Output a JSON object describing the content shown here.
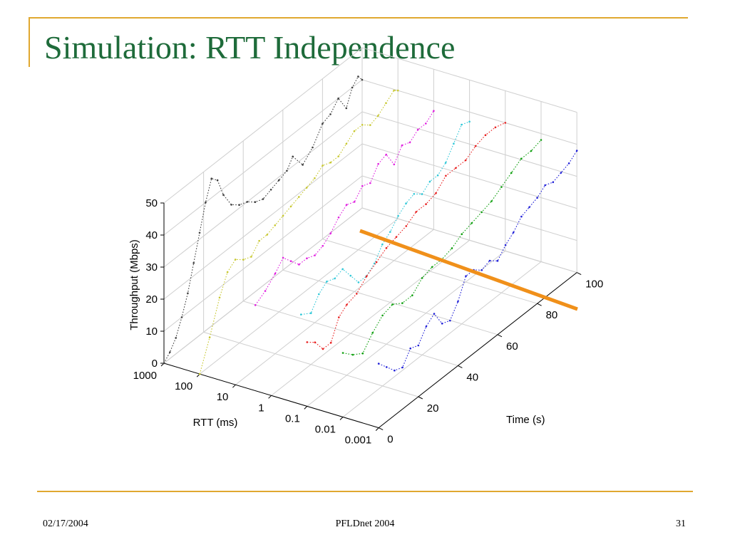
{
  "slide": {
    "title": "Simulation: RTT Independence",
    "footer_date": "02/17/2004",
    "footer_center": "PFLDnet 2004",
    "page_number": "31",
    "accent_color": "#e0a830",
    "title_color": "#1e6b3a"
  },
  "chart_data": {
    "type": "line",
    "projection": "3d",
    "title": "",
    "xlabel": "Time (s)",
    "ylabel": "RTT (ms)",
    "zlabel": "Throughput (Mbps)",
    "xlim": [
      0,
      100
    ],
    "zlim": [
      0,
      50
    ],
    "x_ticks": [
      "0",
      "20",
      "40",
      "60",
      "80",
      "100"
    ],
    "rtt_ticks": [
      "1000",
      "100",
      "10",
      "1",
      "0.1",
      "0.01",
      "0.001"
    ],
    "z_ticks": [
      "0",
      "10",
      "20",
      "30",
      "40",
      "50"
    ],
    "grid": true,
    "series": [
      {
        "rtt_index": 0,
        "color": "#404040",
        "points": [
          [
            0,
            0
          ],
          [
            3,
            2
          ],
          [
            6,
            5
          ],
          [
            9,
            10
          ],
          [
            12,
            16
          ],
          [
            15,
            24
          ],
          [
            18,
            32
          ],
          [
            21,
            40
          ],
          [
            24,
            46
          ],
          [
            27,
            44
          ],
          [
            30,
            38
          ],
          [
            34,
            33
          ],
          [
            38,
            31
          ],
          [
            42,
            30
          ],
          [
            46,
            28
          ],
          [
            50,
            27
          ],
          [
            54,
            28
          ],
          [
            58,
            29
          ],
          [
            62,
            30
          ],
          [
            65,
            33
          ],
          [
            70,
            28
          ],
          [
            75,
            31
          ],
          [
            80,
            36
          ],
          [
            84,
            37
          ],
          [
            88,
            40
          ],
          [
            92,
            35
          ],
          [
            95,
            40
          ],
          [
            98,
            42
          ],
          [
            100,
            40
          ]
        ]
      },
      {
        "rtt_index": 1,
        "color": "#c8c830",
        "points": [
          [
            0,
            0
          ],
          [
            5,
            9
          ],
          [
            10,
            19
          ],
          [
            14,
            25
          ],
          [
            18,
            27
          ],
          [
            22,
            25
          ],
          [
            26,
            24
          ],
          [
            30,
            27
          ],
          [
            34,
            27
          ],
          [
            38,
            28
          ],
          [
            42,
            29
          ],
          [
            46,
            30
          ],
          [
            50,
            31
          ],
          [
            54,
            32
          ],
          [
            58,
            33
          ],
          [
            62,
            35
          ],
          [
            66,
            34
          ],
          [
            70,
            34
          ],
          [
            74,
            36
          ],
          [
            78,
            38
          ],
          [
            82,
            38
          ],
          [
            86,
            36
          ],
          [
            90,
            37
          ],
          [
            94,
            39
          ],
          [
            98,
            41
          ],
          [
            100,
            40
          ]
        ]
      },
      {
        "rtt_index": 2,
        "color": "#e020e0",
        "points": [
          [
            10,
            20
          ],
          [
            15,
            22
          ],
          [
            20,
            25
          ],
          [
            24,
            28
          ],
          [
            28,
            25
          ],
          [
            32,
            22
          ],
          [
            36,
            22
          ],
          [
            40,
            21
          ],
          [
            44,
            22
          ],
          [
            48,
            24
          ],
          [
            52,
            27
          ],
          [
            56,
            29
          ],
          [
            60,
            28
          ],
          [
            64,
            31
          ],
          [
            68,
            30
          ],
          [
            72,
            34
          ],
          [
            76,
            35
          ],
          [
            80,
            30
          ],
          [
            84,
            34
          ],
          [
            88,
            33
          ],
          [
            92,
            35
          ],
          [
            96,
            35
          ],
          [
            100,
            37
          ]
        ]
      },
      {
        "rtt_index": 3,
        "color": "#30c8d8",
        "points": [
          [
            15,
            18
          ],
          [
            20,
            16
          ],
          [
            24,
            20
          ],
          [
            28,
            22
          ],
          [
            32,
            21
          ],
          [
            36,
            22
          ],
          [
            40,
            18
          ],
          [
            44,
            14
          ],
          [
            48,
            14
          ],
          [
            52,
            16
          ],
          [
            56,
            20
          ],
          [
            60,
            22
          ],
          [
            64,
            25
          ],
          [
            68,
            27
          ],
          [
            72,
            28
          ],
          [
            76,
            26
          ],
          [
            80,
            28
          ],
          [
            84,
            28
          ],
          [
            88,
            30
          ],
          [
            92,
            34
          ],
          [
            96,
            38
          ],
          [
            100,
            37
          ]
        ]
      },
      {
        "rtt_index": 4,
        "color": "#e82020",
        "points": [
          [
            0,
            20
          ],
          [
            4,
            18
          ],
          [
            8,
            14
          ],
          [
            12,
            14
          ],
          [
            16,
            20
          ],
          [
            20,
            22
          ],
          [
            25,
            23
          ],
          [
            30,
            26
          ],
          [
            35,
            28
          ],
          [
            40,
            30
          ],
          [
            45,
            31
          ],
          [
            50,
            32
          ],
          [
            55,
            34
          ],
          [
            60,
            34
          ],
          [
            65,
            35
          ],
          [
            70,
            38
          ],
          [
            75,
            38
          ],
          [
            80,
            38
          ],
          [
            85,
            40
          ],
          [
            90,
            41
          ],
          [
            95,
            41
          ],
          [
            100,
            40
          ]
        ]
      },
      {
        "rtt_index": 5,
        "color": "#10a010",
        "points": [
          [
            0,
            20
          ],
          [
            5,
            17
          ],
          [
            10,
            15
          ],
          [
            15,
            19
          ],
          [
            20,
            22
          ],
          [
            25,
            23
          ],
          [
            30,
            21
          ],
          [
            35,
            21
          ],
          [
            40,
            24
          ],
          [
            45,
            25
          ],
          [
            50,
            25
          ],
          [
            55,
            26
          ],
          [
            60,
            28
          ],
          [
            65,
            29
          ],
          [
            70,
            30
          ],
          [
            75,
            31
          ],
          [
            80,
            33
          ],
          [
            85,
            35
          ],
          [
            90,
            37
          ],
          [
            95,
            37
          ],
          [
            100,
            38
          ]
        ]
      },
      {
        "rtt_index": 6,
        "color": "#2020d8",
        "points": [
          [
            0,
            20
          ],
          [
            4,
            17
          ],
          [
            8,
            14
          ],
          [
            12,
            13
          ],
          [
            16,
            17
          ],
          [
            20,
            16
          ],
          [
            24,
            20
          ],
          [
            28,
            22
          ],
          [
            32,
            17
          ],
          [
            36,
            16
          ],
          [
            40,
            20
          ],
          [
            44,
            26
          ],
          [
            48,
            26
          ],
          [
            52,
            24
          ],
          [
            56,
            25
          ],
          [
            60,
            23
          ],
          [
            64,
            26
          ],
          [
            68,
            28
          ],
          [
            72,
            31
          ],
          [
            76,
            32
          ],
          [
            80,
            33
          ],
          [
            84,
            35
          ],
          [
            88,
            34
          ],
          [
            92,
            35
          ],
          [
            96,
            36
          ],
          [
            100,
            38
          ]
        ]
      }
    ],
    "annotation_line": {
      "color": "#f0901a"
    }
  }
}
